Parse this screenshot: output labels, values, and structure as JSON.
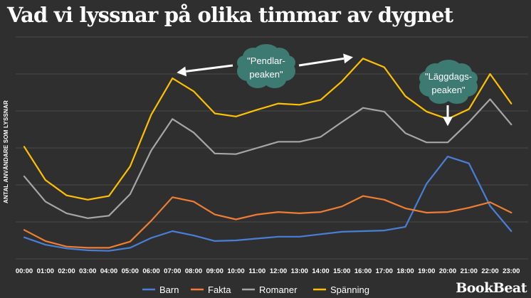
{
  "title": "Vad vi lyssnar på olika timmar av dygnet",
  "brand": "BookBeat",
  "chart_data": {
    "type": "line",
    "title": "Vad vi lyssnar på olika timmar av dygnet",
    "xlabel": "",
    "ylabel": "ANTAL ANVÄNDARE SOM LYSSNAR",
    "grid": true,
    "legend_position": "bottom",
    "x": [
      "00:00",
      "01:00",
      "02:00",
      "03:00",
      "04:00",
      "05:00",
      "06:00",
      "07:00",
      "08:00",
      "09:00",
      "10:00",
      "11:00",
      "12:00",
      "13:00",
      "14:00",
      "15:00",
      "16:00",
      "17:00",
      "18:00",
      "19:00",
      "20:00",
      "21:00",
      "22:00",
      "23:00"
    ],
    "series": [
      {
        "name": "Barn",
        "color": "#4a7fd6",
        "values": [
          35,
          23,
          17,
          14,
          13,
          18,
          34,
          45,
          38,
          29,
          30,
          33,
          36,
          36,
          40,
          44,
          45,
          46,
          52,
          122,
          166,
          155,
          86,
          45
        ]
      },
      {
        "name": "Fakta",
        "color": "#ef7e32",
        "values": [
          47,
          29,
          20,
          18,
          18,
          28,
          62,
          100,
          93,
          72,
          64,
          72,
          76,
          74,
          76,
          85,
          102,
          96,
          82,
          75,
          76,
          83,
          92,
          75
        ]
      },
      {
        "name": "Romaner",
        "color": "#a6a6a6",
        "values": [
          134,
          93,
          74,
          66,
          70,
          105,
          176,
          227,
          205,
          171,
          170,
          180,
          190,
          190,
          198,
          222,
          245,
          239,
          204,
          189,
          189,
          222,
          259,
          218
        ]
      },
      {
        "name": "Spänning",
        "color": "#ffc000",
        "values": [
          182,
          128,
          103,
          96,
          102,
          150,
          234,
          293,
          272,
          236,
          231,
          242,
          252,
          250,
          258,
          288,
          325,
          311,
          264,
          239,
          227,
          243,
          300,
          252
        ]
      }
    ],
    "ylim": [
      0,
      360
    ],
    "annotations": [
      {
        "text": "\"Pendlar-peaken\"",
        "lines": [
          "\"Pendlar-",
          "peaken\""
        ],
        "points_to": [
          "07:00",
          "16:00"
        ]
      },
      {
        "text": "\"Läggdags-peaken\"",
        "lines": [
          "\"Läggdags-",
          "peaken\""
        ],
        "points_to": [
          "20:00"
        ]
      }
    ]
  }
}
